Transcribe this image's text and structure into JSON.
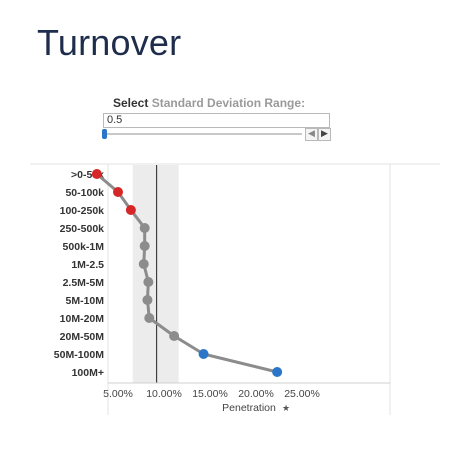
{
  "page": {
    "title": "Turnover"
  },
  "parameter": {
    "label_bold": "Select",
    "label_light": "Standard Deviation Range:",
    "value": "0.5",
    "prev_icon": "chevron-left-icon",
    "next_icon": "chevron-right-icon",
    "slider_fraction": 0.0
  },
  "chart_data": {
    "type": "line",
    "categories": [
      ">0-50k",
      "50-100k",
      "100-250k",
      "250-500k",
      "500k-1M",
      "1M-2.5",
      "2.5M-5M",
      "5M-10M",
      "10M-20M",
      "20M-50M",
      "50M-100M",
      "100M+"
    ],
    "x": [
      2.7,
      5.0,
      6.4,
      7.9,
      7.9,
      7.8,
      8.3,
      8.2,
      8.4,
      11.1,
      14.3,
      22.3
    ],
    "point_colors": [
      "#d62728",
      "#d62728",
      "#d62728",
      "#8c8c8c",
      "#8c8c8c",
      "#8c8c8c",
      "#8c8c8c",
      "#8c8c8c",
      "#8c8c8c",
      "#8c8c8c",
      "#2a77c9",
      "#2a77c9"
    ],
    "line_color": "#8c8c8c",
    "reference_line": 9.2,
    "band": [
      6.6,
      11.6
    ],
    "band_color": "#ececec",
    "xlim": [
      0,
      30
    ],
    "xticks": [
      5,
      10,
      15,
      20,
      25
    ],
    "xtick_labels": [
      "5.00%",
      "10.00%",
      "15.00%",
      "20.00%",
      "25.00%"
    ],
    "xlabel": "Penetration",
    "xlabel_icon": "pin-icon",
    "grid": false
  }
}
